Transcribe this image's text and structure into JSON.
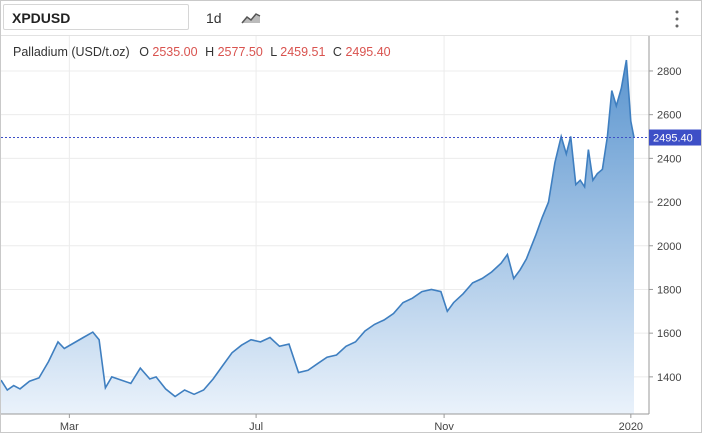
{
  "toolbar": {
    "symbol": "XPDUSD",
    "interval": "1d",
    "chart_type_icon": "area-chart-icon",
    "menu_icon": "vertical-dots-icon"
  },
  "legend": {
    "name": "Palladium (USD/t.oz)",
    "o_label": "O",
    "o_value": "2535.00",
    "h_label": "H",
    "h_value": "2577.50",
    "l_label": "L",
    "l_value": "2459.51",
    "c_label": "C",
    "c_value": "2495.40"
  },
  "colors": {
    "line": "#3f7fc0",
    "fill_top": "#5b95cf",
    "fill_bottom": "#eaf2fb",
    "last_price_tag": "#3d4fc7",
    "ohlc_values": "#d9534f"
  },
  "chart_data": {
    "type": "area",
    "title": "Palladium (USD/t.oz)",
    "last_price": 2495.4,
    "last_price_label": "2495.40",
    "ylim": [
      1230,
      2960
    ],
    "xlim": [
      0,
      1
    ],
    "y_ticks": [
      1400,
      1600,
      1800,
      2000,
      2200,
      2400,
      2600,
      2800
    ],
    "y_tick_labels": [
      "1400",
      "1600",
      "1800",
      "2000",
      "2200",
      "2400",
      "2600",
      "2800"
    ],
    "x_tick_labels": [
      {
        "label": "Mar",
        "t": 0.108
      },
      {
        "label": "Jul",
        "t": 0.403
      },
      {
        "label": "Nov",
        "t": 0.7
      },
      {
        "label": "2020",
        "t": 0.995
      }
    ],
    "grid": true,
    "points": [
      [
        0.0,
        1385
      ],
      [
        0.01,
        1340
      ],
      [
        0.02,
        1360
      ],
      [
        0.03,
        1345
      ],
      [
        0.045,
        1380
      ],
      [
        0.06,
        1395
      ],
      [
        0.075,
        1470
      ],
      [
        0.09,
        1560
      ],
      [
        0.1,
        1530
      ],
      [
        0.115,
        1555
      ],
      [
        0.13,
        1580
      ],
      [
        0.145,
        1605
      ],
      [
        0.155,
        1570
      ],
      [
        0.165,
        1350
      ],
      [
        0.175,
        1400
      ],
      [
        0.19,
        1385
      ],
      [
        0.205,
        1370
      ],
      [
        0.22,
        1440
      ],
      [
        0.235,
        1390
      ],
      [
        0.245,
        1400
      ],
      [
        0.26,
        1345
      ],
      [
        0.275,
        1310
      ],
      [
        0.29,
        1340
      ],
      [
        0.305,
        1320
      ],
      [
        0.32,
        1340
      ],
      [
        0.335,
        1390
      ],
      [
        0.35,
        1450
      ],
      [
        0.365,
        1510
      ],
      [
        0.38,
        1545
      ],
      [
        0.395,
        1570
      ],
      [
        0.41,
        1560
      ],
      [
        0.425,
        1580
      ],
      [
        0.44,
        1540
      ],
      [
        0.455,
        1550
      ],
      [
        0.47,
        1420
      ],
      [
        0.485,
        1430
      ],
      [
        0.5,
        1460
      ],
      [
        0.515,
        1490
      ],
      [
        0.53,
        1500
      ],
      [
        0.545,
        1540
      ],
      [
        0.56,
        1560
      ],
      [
        0.575,
        1610
      ],
      [
        0.59,
        1640
      ],
      [
        0.605,
        1660
      ],
      [
        0.62,
        1690
      ],
      [
        0.635,
        1740
      ],
      [
        0.65,
        1760
      ],
      [
        0.665,
        1790
      ],
      [
        0.68,
        1800
      ],
      [
        0.695,
        1790
      ],
      [
        0.705,
        1700
      ],
      [
        0.715,
        1740
      ],
      [
        0.73,
        1780
      ],
      [
        0.745,
        1830
      ],
      [
        0.76,
        1850
      ],
      [
        0.775,
        1880
      ],
      [
        0.79,
        1920
      ],
      [
        0.8,
        1960
      ],
      [
        0.81,
        1850
      ],
      [
        0.82,
        1890
      ],
      [
        0.83,
        1940
      ],
      [
        0.845,
        2050
      ],
      [
        0.855,
        2130
      ],
      [
        0.865,
        2200
      ],
      [
        0.875,
        2380
      ],
      [
        0.885,
        2500
      ],
      [
        0.893,
        2420
      ],
      [
        0.9,
        2500
      ],
      [
        0.908,
        2280
      ],
      [
        0.915,
        2300
      ],
      [
        0.922,
        2270
      ],
      [
        0.928,
        2440
      ],
      [
        0.935,
        2300
      ],
      [
        0.942,
        2330
      ],
      [
        0.95,
        2350
      ],
      [
        0.958,
        2500
      ],
      [
        0.965,
        2710
      ],
      [
        0.972,
        2640
      ],
      [
        0.98,
        2720
      ],
      [
        0.988,
        2850
      ],
      [
        0.995,
        2570
      ],
      [
        1.0,
        2495
      ]
    ]
  }
}
